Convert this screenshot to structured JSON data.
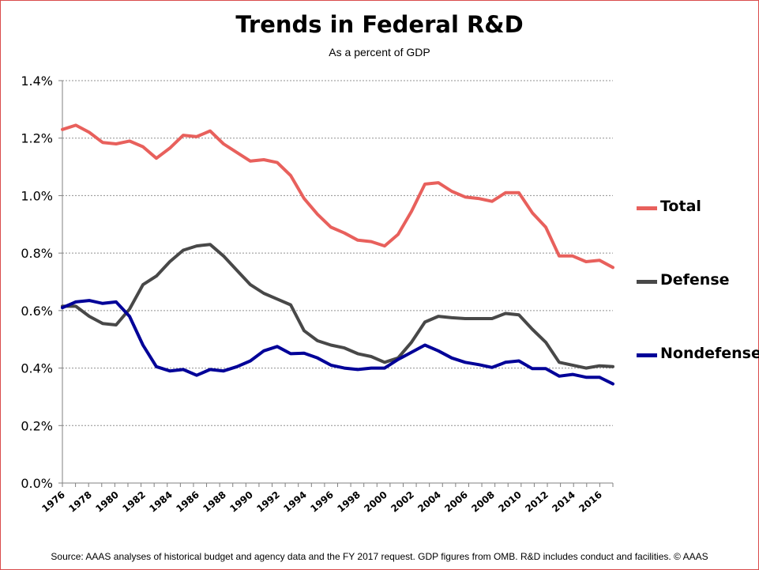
{
  "chart_data": {
    "type": "line",
    "title": "Trends in Federal R&D",
    "subtitle": "As a percent of GDP",
    "xlabel": "",
    "ylabel": "",
    "ylim": [
      0,
      1.4
    ],
    "yticks": [
      "0.0%",
      "0.2%",
      "0.4%",
      "0.6%",
      "0.8%",
      "1.0%",
      "1.2%",
      "1.4%"
    ],
    "ytick_values": [
      0,
      0.2,
      0.4,
      0.6,
      0.8,
      1.0,
      1.2,
      1.4
    ],
    "x": [
      1976,
      1977,
      1978,
      1979,
      1980,
      1981,
      1982,
      1983,
      1984,
      1985,
      1986,
      1987,
      1988,
      1989,
      1990,
      1991,
      1992,
      1993,
      1994,
      1995,
      1996,
      1997,
      1998,
      1999,
      2000,
      2001,
      2002,
      2003,
      2004,
      2005,
      2006,
      2007,
      2008,
      2009,
      2010,
      2011,
      2012,
      2013,
      2014,
      2015,
      2016,
      2017
    ],
    "xtick_labels": [
      "1976",
      "1978",
      "1980",
      "1982",
      "1984",
      "1986",
      "1988",
      "1990",
      "1992",
      "1994",
      "1996",
      "1998",
      "2000",
      "2002",
      "2004",
      "2006",
      "2008",
      "2010",
      "2012",
      "2014",
      "2016"
    ],
    "xtick_values": [
      1976,
      1978,
      1980,
      1982,
      1984,
      1986,
      1988,
      1990,
      1992,
      1994,
      1996,
      1998,
      2000,
      2002,
      2004,
      2006,
      2008,
      2010,
      2012,
      2014,
      2016
    ],
    "grid": true,
    "legend_position": "right",
    "series": [
      {
        "name": "Total",
        "color": "#e8605c",
        "values": [
          1.23,
          1.245,
          1.22,
          1.185,
          1.18,
          1.19,
          1.17,
          1.13,
          1.165,
          1.21,
          1.205,
          1.225,
          1.18,
          1.15,
          1.12,
          1.125,
          1.115,
          1.07,
          0.99,
          0.935,
          0.89,
          0.87,
          0.845,
          0.84,
          0.825,
          0.865,
          0.945,
          1.04,
          1.045,
          1.015,
          0.995,
          0.99,
          0.98,
          1.01,
          1.01,
          0.94,
          0.89,
          0.79,
          0.79,
          0.77,
          0.775,
          0.75
        ]
      },
      {
        "name": "Defense",
        "color": "#484848",
        "values": [
          0.615,
          0.615,
          0.58,
          0.555,
          0.55,
          0.605,
          0.69,
          0.72,
          0.77,
          0.81,
          0.825,
          0.83,
          0.79,
          0.74,
          0.69,
          0.66,
          0.64,
          0.62,
          0.53,
          0.495,
          0.48,
          0.47,
          0.45,
          0.44,
          0.42,
          0.435,
          0.49,
          0.56,
          0.58,
          0.575,
          0.572,
          0.572,
          0.572,
          0.59,
          0.585,
          0.535,
          0.49,
          0.42,
          0.41,
          0.4,
          0.408,
          0.405
        ]
      },
      {
        "name": "Nondefense",
        "color": "#000098",
        "values": [
          0.61,
          0.63,
          0.635,
          0.625,
          0.63,
          0.58,
          0.48,
          0.405,
          0.39,
          0.395,
          0.375,
          0.395,
          0.39,
          0.405,
          0.425,
          0.46,
          0.475,
          0.45,
          0.452,
          0.435,
          0.41,
          0.4,
          0.395,
          0.4,
          0.4,
          0.43,
          0.455,
          0.48,
          0.46,
          0.435,
          0.42,
          0.412,
          0.402,
          0.42,
          0.425,
          0.398,
          0.398,
          0.372,
          0.378,
          0.368,
          0.368,
          0.345
        ]
      }
    ]
  },
  "source_note": "Source: AAAS analyses of historical budget and agency data and the FY 2017 request. GDP figures from OMB. R&D includes conduct and facilities. © AAAS"
}
